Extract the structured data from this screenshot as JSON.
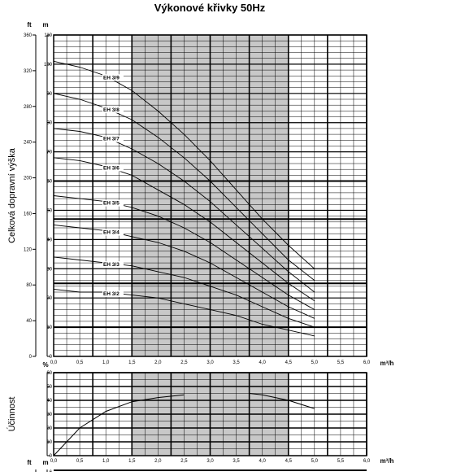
{
  "chart_data": [
    {
      "type": "line",
      "title": "Výkonové křivky 50Hz",
      "ylabel": "Celková dopravní výška",
      "xlabel": "m³/h",
      "y_unit_left": "ft",
      "y_unit_right": "m",
      "xlim": [
        0.0,
        6.0
      ],
      "ylim": [
        0,
        110
      ],
      "ylim_ft": [
        0,
        360
      ],
      "x_ticks": [
        "0,0",
        "0,5",
        "1,0",
        "1,5",
        "2,0",
        "2,5",
        "3,0",
        "3,5",
        "4,0",
        "4,5",
        "5,0",
        "5,5",
        "6,0"
      ],
      "y_ticks_m": [
        "0",
        "10",
        "20",
        "30",
        "40",
        "50",
        "60",
        "70",
        "80",
        "90",
        "100",
        "110"
      ],
      "y_ticks_ft": [
        "0",
        "40",
        "80",
        "120",
        "160",
        "200",
        "240",
        "280",
        "320",
        "360"
      ],
      "shaded_range": [
        1.5,
        4.5
      ],
      "grid": true,
      "series": [
        {
          "name": "EH 3/9",
          "x": [
            0,
            0.5,
            1.0,
            1.5,
            2.0,
            2.5,
            3.0,
            3.5,
            4.0,
            4.5,
            5.0
          ],
          "y": [
            101,
            99,
            96,
            91,
            84,
            76,
            67,
            57,
            47,
            38,
            30
          ]
        },
        {
          "name": "EH 3/8",
          "x": [
            0,
            0.5,
            1.0,
            1.5,
            2.0,
            2.5,
            3.0,
            3.5,
            4.0,
            4.5,
            5.0
          ],
          "y": [
            90,
            88,
            85,
            81,
            75,
            68,
            60,
            51,
            42,
            33,
            26
          ]
        },
        {
          "name": "EH 3/7",
          "x": [
            0,
            0.5,
            1.0,
            1.5,
            2.0,
            2.5,
            3.0,
            3.5,
            4.0,
            4.5,
            5.0
          ],
          "y": [
            78,
            77,
            75,
            71,
            66,
            60,
            53,
            45,
            37,
            29,
            22
          ]
        },
        {
          "name": "EH 3/6",
          "x": [
            0,
            0.5,
            1.0,
            1.5,
            2.0,
            2.5,
            3.0,
            3.5,
            4.0,
            4.5,
            5.0
          ],
          "y": [
            68,
            67,
            65,
            62,
            57,
            52,
            46,
            39,
            32,
            25,
            19
          ]
        },
        {
          "name": "EH 3/5",
          "x": [
            0,
            0.5,
            1.0,
            1.5,
            2.0,
            2.5,
            3.0,
            3.5,
            4.0,
            4.5,
            5.0
          ],
          "y": [
            55,
            54,
            53,
            51,
            48,
            44,
            39,
            33,
            27,
            21,
            16
          ]
        },
        {
          "name": "EH 3/4",
          "x": [
            0,
            0.5,
            1.0,
            1.5,
            2.0,
            2.5,
            3.0,
            3.5,
            4.0,
            4.5,
            5.0
          ],
          "y": [
            45,
            44,
            43,
            41,
            39,
            36,
            32,
            27,
            22,
            17,
            13
          ]
        },
        {
          "name": "EH 3/3",
          "x": [
            0,
            0.5,
            1.0,
            1.5,
            2.0,
            2.5,
            3.0,
            3.5,
            4.0,
            4.5,
            5.0
          ],
          "y": [
            34,
            33,
            32,
            31,
            29,
            27,
            24,
            21,
            17,
            13,
            10
          ]
        },
        {
          "name": "EH 3/2",
          "x": [
            0,
            0.5,
            1.0,
            1.5,
            2.0,
            2.5,
            3.0,
            3.5,
            4.0,
            4.5,
            5.0
          ],
          "y": [
            23,
            22,
            22,
            21,
            20,
            18,
            16,
            14,
            11,
            9,
            7
          ]
        }
      ]
    },
    {
      "type": "line",
      "ylabel": "Účinnost",
      "xlabel": "m³/h",
      "y_unit": "%",
      "xlim": [
        0.0,
        6.0
      ],
      "ylim": [
        0,
        60
      ],
      "x_ticks": [
        "0,0",
        "0,5",
        "1,0",
        "1,5",
        "2,0",
        "2,5",
        "3,0",
        "3,5",
        "4,0",
        "4,5",
        "5,0",
        "5,5",
        "6,0"
      ],
      "y_ticks": [
        "0",
        "10",
        "20",
        "30",
        "40",
        "50",
        "60"
      ],
      "shaded_range": [
        1.5,
        4.5
      ],
      "grid": true,
      "series": [
        {
          "x": [
            0,
            0.5,
            1.0,
            1.5,
            2.0,
            2.5
          ],
          "y": [
            0,
            20,
            32,
            39,
            42,
            44
          ]
        },
        {
          "x": [
            3.75,
            4.0,
            4.5,
            5.0
          ],
          "y": [
            45,
            44,
            40,
            34
          ]
        }
      ]
    },
    {
      "type": "line",
      "y_unit_left": "ft",
      "y_unit_right": "m",
      "y_ticks": [
        "6"
      ]
    }
  ]
}
